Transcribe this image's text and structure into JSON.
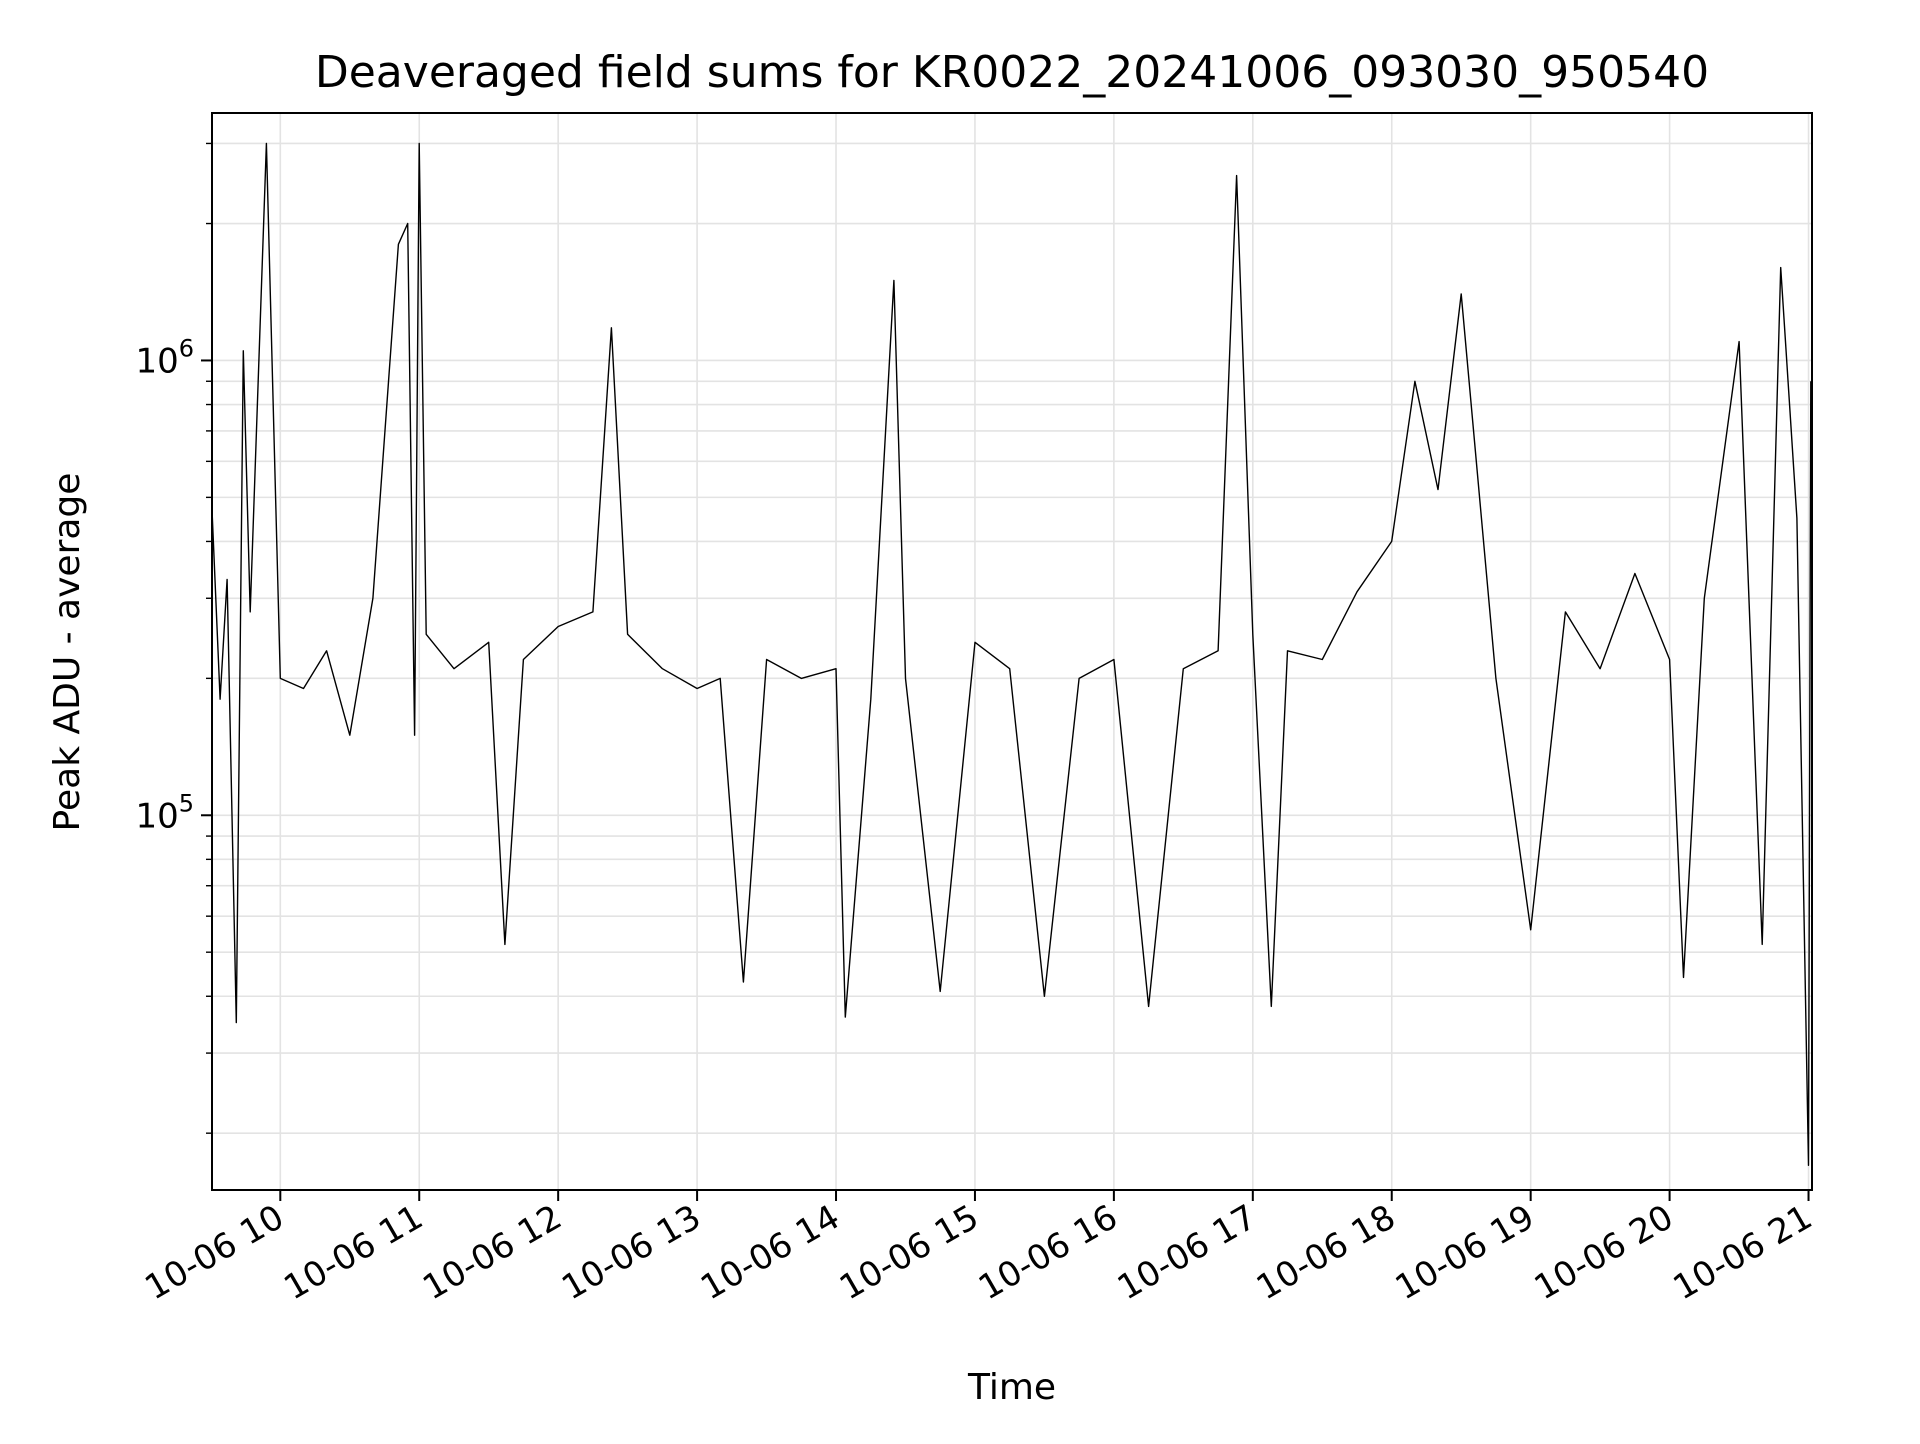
{
  "chart_data": {
    "type": "line",
    "title": "Deaveraged field sums for KR0022_20241006_093030_950540",
    "xlabel": "Time",
    "ylabel": "Peak ADU - average",
    "yscale": "log",
    "ylim": [
      15000,
      3500000
    ],
    "xlim": [
      "2024-10-06 09:30:30",
      "2024-10-06 21:01:30"
    ],
    "grid": true,
    "line_color": "#000000",
    "x_ticks": [
      "10-06 10",
      "10-06 11",
      "10-06 12",
      "10-06 13",
      "10-06 14",
      "10-06 15",
      "10-06 16",
      "10-06 17",
      "10-06 18",
      "10-06 19",
      "10-06 20",
      "10-06 21"
    ],
    "x_tick_times": [
      "2024-10-06 10:00",
      "2024-10-06 11:00",
      "2024-10-06 12:00",
      "2024-10-06 13:00",
      "2024-10-06 14:00",
      "2024-10-06 15:00",
      "2024-10-06 16:00",
      "2024-10-06 17:00",
      "2024-10-06 18:00",
      "2024-10-06 19:00",
      "2024-10-06 20:00",
      "2024-10-06 21:00"
    ],
    "y_ticks": [
      {
        "base": "10",
        "exp": "5",
        "value": 100000
      },
      {
        "base": "10",
        "exp": "6",
        "value": 1000000
      }
    ],
    "series": [
      {
        "x": [
          "2024-10-06 09:30:30",
          "2024-10-06 09:34",
          "2024-10-06 09:37",
          "2024-10-06 09:41",
          "2024-10-06 09:44",
          "2024-10-06 09:47",
          "2024-10-06 09:54",
          "2024-10-06 10:00",
          "2024-10-06 10:10",
          "2024-10-06 10:20",
          "2024-10-06 10:30",
          "2024-10-06 10:40",
          "2024-10-06 10:51",
          "2024-10-06 10:55",
          "2024-10-06 10:58",
          "2024-10-06 11:00",
          "2024-10-06 11:03",
          "2024-10-06 11:15",
          "2024-10-06 11:30",
          "2024-10-06 11:37",
          "2024-10-06 11:45",
          "2024-10-06 12:00",
          "2024-10-06 12:15",
          "2024-10-06 12:23",
          "2024-10-06 12:30",
          "2024-10-06 12:45",
          "2024-10-06 13:00",
          "2024-10-06 13:10",
          "2024-10-06 13:20",
          "2024-10-06 13:30",
          "2024-10-06 13:45",
          "2024-10-06 14:00",
          "2024-10-06 14:04",
          "2024-10-06 14:15",
          "2024-10-06 14:25",
          "2024-10-06 14:30",
          "2024-10-06 14:45",
          "2024-10-06 15:00",
          "2024-10-06 15:15",
          "2024-10-06 15:30",
          "2024-10-06 15:45",
          "2024-10-06 16:00",
          "2024-10-06 16:15",
          "2024-10-06 16:30",
          "2024-10-06 16:45",
          "2024-10-06 16:53",
          "2024-10-06 17:00",
          "2024-10-06 17:08",
          "2024-10-06 17:15",
          "2024-10-06 17:30",
          "2024-10-06 17:45",
          "2024-10-06 18:00",
          "2024-10-06 18:10",
          "2024-10-06 18:20",
          "2024-10-06 18:30",
          "2024-10-06 18:45",
          "2024-10-06 19:00",
          "2024-10-06 19:15",
          "2024-10-06 19:30",
          "2024-10-06 19:45",
          "2024-10-06 20:00",
          "2024-10-06 20:06",
          "2024-10-06 20:15",
          "2024-10-06 20:30",
          "2024-10-06 20:40",
          "2024-10-06 20:48",
          "2024-10-06 20:55",
          "2024-10-06 21:00",
          "2024-10-06 21:01"
        ],
        "y": [
          470000,
          180000,
          330000,
          35000,
          1050000,
          280000,
          3000000,
          200000,
          190000,
          230000,
          150000,
          300000,
          1800000,
          2000000,
          150000,
          3000000,
          250000,
          210000,
          240000,
          52000,
          220000,
          260000,
          280000,
          1180000,
          250000,
          210000,
          190000,
          200000,
          43000,
          220000,
          200000,
          210000,
          36000,
          180000,
          1500000,
          200000,
          41000,
          240000,
          210000,
          40000,
          200000,
          220000,
          38000,
          210000,
          230000,
          2550000,
          250000,
          38000,
          230000,
          220000,
          310000,
          400000,
          900000,
          520000,
          1400000,
          200000,
          56000,
          280000,
          210000,
          340000,
          220000,
          44000,
          300000,
          1100000,
          52000,
          1600000,
          450000,
          17000,
          900000
        ]
      }
    ]
  }
}
